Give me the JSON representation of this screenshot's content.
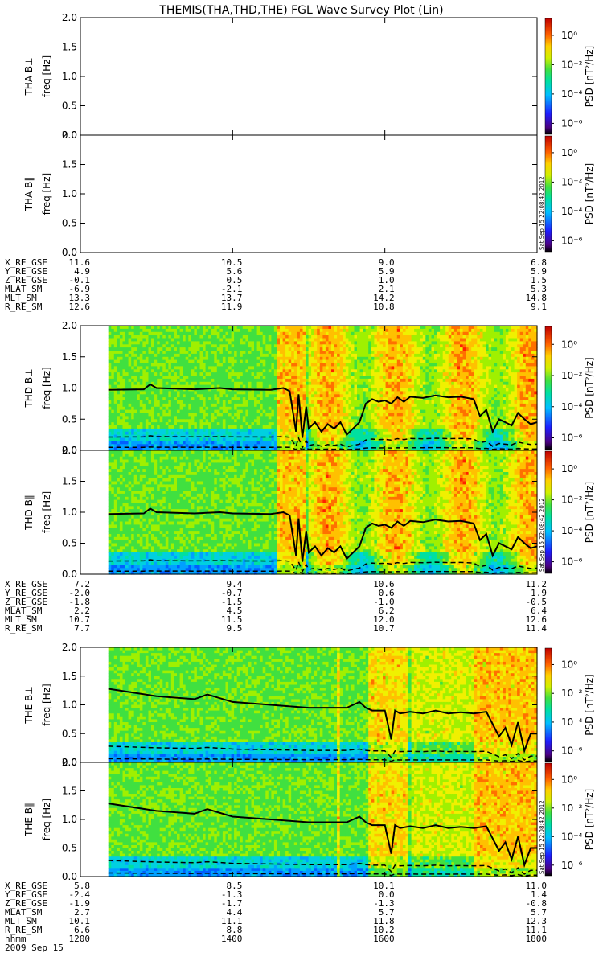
{
  "title": "THEMIS(THA,THD,THE) FGL Wave Survey Plot (Lin)",
  "creation_stamp": "Sat Sep 15 22:08:42 2012",
  "colors": {
    "axis": "#000000",
    "background": "#ffffff"
  },
  "chart_data": [
    {
      "type": "heatmap",
      "probe": "THA",
      "panels": [
        {
          "ylabel": "THA B⊥",
          "has_data": false,
          "ylim": [
            0,
            2
          ],
          "yticks": [
            "0.0",
            "0.5",
            "1.0",
            "1.5",
            "2.0"
          ]
        },
        {
          "ylabel": "THA B∥",
          "has_data": false,
          "ylim": [
            0,
            2
          ],
          "yticks": [
            "0.0",
            "0.5",
            "1.0",
            "1.5",
            "2.0"
          ]
        }
      ],
      "yunit_label": "freq [Hz]",
      "colorbar": {
        "label": "PSD [nT²/Hz]",
        "ticks": [
          "10⁰",
          "10⁻²",
          "10⁻⁴",
          "10⁻⁶"
        ],
        "scale": "log"
      },
      "ephemeris": [
        {
          "name": "X_RE_GSE",
          "values": [
            "11.6",
            "10.5",
            "9.0",
            "6.8"
          ]
        },
        {
          "name": "Y_RE_GSE",
          "values": [
            "4.9",
            "5.6",
            "5.9",
            "5.9"
          ]
        },
        {
          "name": "Z_RE_GSE",
          "values": [
            "-0.1",
            "0.5",
            "1.0",
            "1.5"
          ]
        },
        {
          "name": "MLAT_SM",
          "values": [
            "-6.9",
            "-2.1",
            "2.1",
            "5.3"
          ]
        },
        {
          "name": "MLT_SM",
          "values": [
            "13.3",
            "13.7",
            "14.2",
            "14.8"
          ]
        },
        {
          "name": "R_RE_SM",
          "values": [
            "12.6",
            "11.9",
            "10.8",
            "9.1"
          ]
        }
      ]
    },
    {
      "type": "heatmap",
      "probe": "THD",
      "panels": [
        {
          "ylabel": "THD B⊥",
          "has_data": true,
          "ylim": [
            0,
            2
          ],
          "yticks": [
            "0.0",
            "0.5",
            "1.0",
            "1.5",
            "2.0"
          ]
        },
        {
          "ylabel": "THD B∥",
          "has_data": true,
          "ylim": [
            0,
            2
          ],
          "yticks": [
            "0.0",
            "0.5",
            "1.0",
            "1.5",
            "2.0"
          ]
        }
      ],
      "yunit_label": "freq [Hz]",
      "data_start_hhmm": 1222,
      "colorbar": {
        "label": "PSD [nT²/Hz]",
        "ticks": [
          "10⁰",
          "10⁻²",
          "10⁻⁴",
          "10⁻⁶"
        ],
        "scale": "log"
      },
      "fce_line": {
        "x": [
          1222,
          1250,
          1255,
          1300,
          1330,
          1350,
          1400,
          1430,
          1440,
          1445,
          1450,
          1452,
          1455,
          1458,
          1500,
          1505,
          1510,
          1515,
          1520,
          1525,
          1530,
          1540,
          1545,
          1550,
          1555,
          1600,
          1605,
          1610,
          1615,
          1620,
          1630,
          1640,
          1650,
          1700,
          1710,
          1715,
          1720,
          1725,
          1730,
          1740,
          1745,
          1750,
          1755,
          1800
        ],
        "y": [
          0.97,
          0.98,
          1.06,
          1.0,
          0.98,
          1.0,
          0.98,
          0.97,
          1.0,
          0.95,
          0.3,
          0.9,
          0.2,
          0.7,
          0.35,
          0.45,
          0.3,
          0.42,
          0.35,
          0.45,
          0.25,
          0.45,
          0.75,
          0.82,
          0.78,
          0.8,
          0.75,
          0.85,
          0.78,
          0.86,
          0.84,
          0.88,
          0.85,
          0.86,
          0.82,
          0.55,
          0.65,
          0.3,
          0.5,
          0.4,
          0.6,
          0.5,
          0.42,
          0.45
        ]
      },
      "ephemeris": [
        {
          "name": "X_RE_GSE",
          "values": [
            "7.2",
            "9.4",
            "10.6",
            "11.2"
          ]
        },
        {
          "name": "Y_RE_GSE",
          "values": [
            "-2.0",
            "-0.7",
            "0.6",
            "1.9"
          ]
        },
        {
          "name": "Z_RE_GSE",
          "values": [
            "-1.8",
            "-1.5",
            "-1.0",
            "-0.5"
          ]
        },
        {
          "name": "MLAT_SM",
          "values": [
            "2.2",
            "4.5",
            "6.2",
            "6.4"
          ]
        },
        {
          "name": "MLT_SM",
          "values": [
            "10.7",
            "11.5",
            "12.0",
            "12.6"
          ]
        },
        {
          "name": "R_RE_SM",
          "values": [
            "7.7",
            "9.5",
            "10.7",
            "11.4"
          ]
        }
      ]
    },
    {
      "type": "heatmap",
      "probe": "THE",
      "panels": [
        {
          "ylabel": "THE B⊥",
          "has_data": true,
          "ylim": [
            0,
            2
          ],
          "yticks": [
            "0.0",
            "0.5",
            "1.0",
            "1.5",
            "2.0"
          ]
        },
        {
          "ylabel": "THE B∥",
          "has_data": true,
          "ylim": [
            0,
            2
          ],
          "yticks": [
            "0.0",
            "0.5",
            "1.0",
            "1.5",
            "2.0"
          ]
        }
      ],
      "yunit_label": "freq [Hz]",
      "data_start_hhmm": 1222,
      "colorbar": {
        "label": "PSD [nT²/Hz]",
        "ticks": [
          "10⁰",
          "10⁻²",
          "10⁻⁴",
          "10⁻⁶"
        ],
        "scale": "log"
      },
      "fce_line": {
        "x": [
          1222,
          1300,
          1330,
          1340,
          1400,
          1430,
          1500,
          1530,
          1540,
          1545,
          1550,
          1600,
          1605,
          1608,
          1612,
          1620,
          1630,
          1640,
          1650,
          1700,
          1710,
          1720,
          1730,
          1735,
          1740,
          1745,
          1750,
          1755,
          1800
        ],
        "y": [
          1.28,
          1.15,
          1.1,
          1.18,
          1.05,
          1.0,
          0.95,
          0.95,
          1.05,
          0.95,
          0.9,
          0.9,
          0.4,
          0.9,
          0.85,
          0.88,
          0.85,
          0.9,
          0.85,
          0.87,
          0.85,
          0.88,
          0.45,
          0.6,
          0.3,
          0.7,
          0.2,
          0.5,
          0.5
        ]
      },
      "ephemeris": [
        {
          "name": "X_RE_GSE",
          "values": [
            "5.8",
            "8.5",
            "10.1",
            "11.0"
          ]
        },
        {
          "name": "Y_RE_GSE",
          "values": [
            "-2.4",
            "-1.3",
            "0.0",
            "1.4"
          ]
        },
        {
          "name": "Z_RE_GSE",
          "values": [
            "-1.9",
            "-1.7",
            "-1.3",
            "-0.8"
          ]
        },
        {
          "name": "MLAT_SM",
          "values": [
            "2.7",
            "4.4",
            "5.7",
            "5.7"
          ]
        },
        {
          "name": "MLT_SM",
          "values": [
            "10.1",
            "11.1",
            "11.8",
            "12.3"
          ]
        },
        {
          "name": "R_RE_SM",
          "values": [
            "6.6",
            "8.8",
            "10.2",
            "11.1"
          ]
        }
      ]
    }
  ],
  "time_axis": {
    "label": "hhmm",
    "ticks": [
      "1200",
      "1400",
      "1600",
      "1800"
    ],
    "xlim": [
      1200,
      1800
    ],
    "date": "2009 Sep 15"
  }
}
